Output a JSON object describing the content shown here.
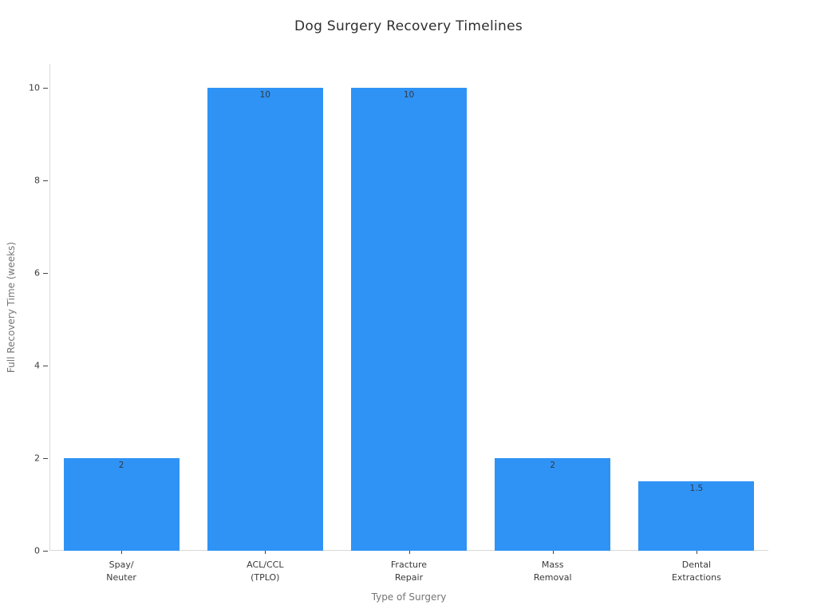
{
  "chart_data": {
    "type": "bar",
    "title": "Dog Surgery Recovery Timelines",
    "xlabel": "Type of Surgery",
    "ylabel": "Full Recovery Time (weeks)",
    "categories": [
      "Spay/\nNeuter",
      "ACL/CCL\n(TPLO)",
      "Fracture\nRepair",
      "Mass\nRemoval",
      "Dental\nExtractions"
    ],
    "values": [
      2,
      10,
      10,
      2,
      1.5
    ],
    "value_labels": [
      "2",
      "10",
      "10",
      "2",
      "1.5"
    ],
    "yticks": [
      0,
      2,
      4,
      6,
      8,
      10
    ],
    "ylim": [
      0,
      10.5
    ],
    "grid": false,
    "legend": null,
    "bar_color": "#2f93f5",
    "axis_line_color": "#d9d9d9",
    "tick_mark_color": "#444444",
    "tick_label_color": "#3a3a3a",
    "axis_label_color": "#757575",
    "title_color": "#2f2f2f",
    "value_label_color": "#2f3a44"
  }
}
